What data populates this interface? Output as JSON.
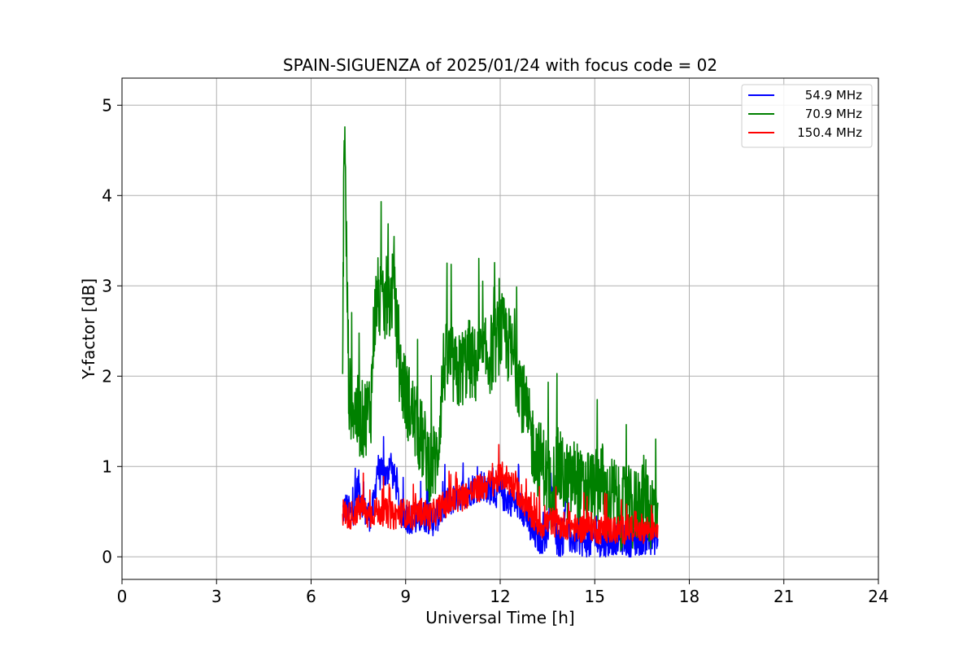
{
  "chart_data": {
    "type": "line",
    "title": "SPAIN-SIGUENZA of 2025/01/24 with focus code = 02",
    "xlabel": "Universal Time [h]",
    "ylabel": "Y-factor [dB]",
    "xlim": [
      0,
      24
    ],
    "ylim": [
      -0.25,
      5.3
    ],
    "x_ticks": [
      0,
      3,
      6,
      9,
      12,
      15,
      18,
      21,
      24
    ],
    "y_ticks": [
      0,
      1,
      2,
      3,
      4,
      5
    ],
    "grid": true,
    "legend_position": "top-right",
    "series": [
      {
        "name": "54.9 MHz",
        "color": "#0000ff",
        "x": [
          7.0,
          7.1,
          7.3,
          7.5,
          7.7,
          7.9,
          8.0,
          8.1,
          8.2,
          8.3,
          8.4,
          8.5,
          8.6,
          8.7,
          8.8,
          8.9,
          9.0,
          9.3,
          9.6,
          9.9,
          10.2,
          10.5,
          10.8,
          11.1,
          11.4,
          11.7,
          12.0,
          12.2,
          12.5,
          12.8,
          13.0,
          13.3,
          13.5,
          13.6,
          13.8,
          14.0,
          14.1,
          14.2,
          14.5,
          14.8,
          15.0,
          15.3,
          15.6,
          15.9,
          16.2,
          16.5,
          16.8,
          17.0
        ],
        "y": [
          0.5,
          0.55,
          0.45,
          0.8,
          0.5,
          0.45,
          0.6,
          1.0,
          0.9,
          0.95,
          0.85,
          1.1,
          0.9,
          0.8,
          0.55,
          0.45,
          0.45,
          0.4,
          0.45,
          0.4,
          0.55,
          0.65,
          0.7,
          0.75,
          0.8,
          0.75,
          0.7,
          0.65,
          0.6,
          0.5,
          0.25,
          0.2,
          0.25,
          0.8,
          0.2,
          0.15,
          0.9,
          0.2,
          0.2,
          0.15,
          0.2,
          0.15,
          0.2,
          0.2,
          0.15,
          0.2,
          0.2,
          0.2
        ]
      },
      {
        "name": "70.9 MHz",
        "color": "#008000",
        "x": [
          7.0,
          7.05,
          7.2,
          7.4,
          7.6,
          7.8,
          7.9,
          8.0,
          8.1,
          8.2,
          8.3,
          8.4,
          8.5,
          8.6,
          8.7,
          8.8,
          9.0,
          9.2,
          9.4,
          9.6,
          9.8,
          10.0,
          10.2,
          10.4,
          10.6,
          10.8,
          11.0,
          11.2,
          11.4,
          11.6,
          11.8,
          12.0,
          12.2,
          12.4,
          12.6,
          12.8,
          13.0,
          13.2,
          13.4,
          13.6,
          13.8,
          14.0,
          14.2,
          14.4,
          14.6,
          14.8,
          15.0,
          15.2,
          15.4,
          15.6,
          15.8,
          16.0,
          16.2,
          16.4,
          16.6,
          16.8,
          17.0
        ],
        "y": [
          2.0,
          4.9,
          1.8,
          1.6,
          1.5,
          1.6,
          1.7,
          2.6,
          2.9,
          2.8,
          2.7,
          2.9,
          2.8,
          3.0,
          2.6,
          2.1,
          1.8,
          1.6,
          1.4,
          1.2,
          1.0,
          1.1,
          2.1,
          2.2,
          2.0,
          2.1,
          2.2,
          2.1,
          2.2,
          2.2,
          2.3,
          2.5,
          2.4,
          2.2,
          2.0,
          1.6,
          1.3,
          1.1,
          1.0,
          0.7,
          1.0,
          0.9,
          0.8,
          0.9,
          0.7,
          0.8,
          0.7,
          0.9,
          0.6,
          0.7,
          0.5,
          0.6,
          0.5,
          0.6,
          0.7,
          0.5,
          0.6
        ]
      },
      {
        "name": "150.4 MHz",
        "color": "#ff0000",
        "x": [
          7.0,
          7.2,
          7.4,
          7.6,
          7.8,
          8.0,
          8.3,
          8.6,
          8.9,
          9.2,
          9.5,
          9.8,
          10.1,
          10.4,
          10.7,
          11.0,
          11.3,
          11.6,
          11.9,
          12.1,
          12.4,
          12.7,
          13.0,
          13.3,
          13.6,
          13.9,
          14.2,
          14.5,
          14.8,
          15.1,
          15.4,
          15.7,
          16.0,
          16.3,
          16.6,
          17.0
        ],
        "y": [
          0.5,
          0.45,
          0.5,
          0.55,
          0.45,
          0.5,
          0.5,
          0.45,
          0.5,
          0.45,
          0.5,
          0.45,
          0.55,
          0.6,
          0.65,
          0.7,
          0.75,
          0.8,
          0.85,
          0.9,
          0.8,
          0.65,
          0.45,
          0.35,
          0.4,
          0.35,
          0.35,
          0.3,
          0.35,
          0.3,
          0.3,
          0.3,
          0.3,
          0.35,
          0.3,
          0.35
        ]
      }
    ]
  }
}
